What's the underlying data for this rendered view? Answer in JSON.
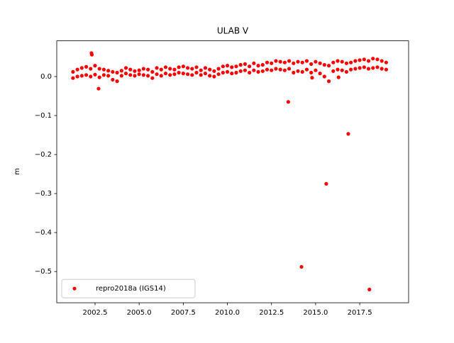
{
  "chart_data": {
    "type": "scatter",
    "title": "ULAB V",
    "ylabel": "m",
    "series": [
      {
        "name": "repro2018a (IGS14)",
        "color": "#ff0000",
        "x": [
          2001.25,
          2001.25,
          2001.5,
          2001.5,
          2001.75,
          2001.75,
          2002.0,
          2002.0,
          2002.25,
          2002.25,
          2002.5,
          2002.5,
          2002.75,
          2002.75,
          2003.0,
          2003.0,
          2003.25,
          2003.25,
          2003.5,
          2003.5,
          2003.75,
          2003.75,
          2004.0,
          2004.0,
          2004.25,
          2004.25,
          2004.5,
          2004.5,
          2004.75,
          2004.75,
          2005.0,
          2005.0,
          2005.25,
          2005.25,
          2005.5,
          2005.5,
          2005.75,
          2005.75,
          2006.0,
          2006.0,
          2006.25,
          2006.25,
          2006.5,
          2006.5,
          2006.75,
          2006.75,
          2007.0,
          2007.0,
          2007.25,
          2007.25,
          2007.5,
          2007.5,
          2007.75,
          2007.75,
          2008.0,
          2008.0,
          2008.25,
          2008.25,
          2008.5,
          2008.5,
          2008.75,
          2008.75,
          2009.0,
          2009.0,
          2009.25,
          2009.25,
          2009.5,
          2009.5,
          2009.75,
          2009.75,
          2010.0,
          2010.0,
          2010.25,
          2010.25,
          2010.5,
          2010.5,
          2010.75,
          2010.75,
          2011.0,
          2011.0,
          2011.25,
          2011.25,
          2011.5,
          2011.5,
          2011.75,
          2011.75,
          2012.0,
          2012.0,
          2012.25,
          2012.25,
          2012.5,
          2012.5,
          2012.75,
          2012.75,
          2013.0,
          2013.0,
          2013.25,
          2013.25,
          2013.5,
          2013.5,
          2013.75,
          2013.75,
          2014.0,
          2014.0,
          2014.25,
          2014.25,
          2014.5,
          2014.5,
          2014.75,
          2014.75,
          2015.0,
          2015.0,
          2015.25,
          2015.25,
          2015.5,
          2015.5,
          2015.75,
          2015.75,
          2016.0,
          2016.0,
          2016.25,
          2016.25,
          2016.5,
          2016.5,
          2016.75,
          2016.75,
          2017.0,
          2017.0,
          2017.25,
          2017.25,
          2017.5,
          2017.5,
          2017.75,
          2017.75,
          2018.0,
          2018.0,
          2018.25,
          2018.25,
          2018.5,
          2018.5,
          2018.75,
          2018.75,
          2019.0,
          2019.0,
          2002.3,
          2002.32,
          2002.7,
          2013.45,
          2014.2,
          2015.6,
          2016.85,
          2018.05,
          2014.8,
          2016.3
        ],
        "values": [
          0.012,
          -0.004,
          0.018,
          0.0,
          0.022,
          0.002,
          0.025,
          0.004,
          0.02,
          0.0,
          0.028,
          0.005,
          0.02,
          -0.002,
          0.018,
          0.004,
          0.015,
          0.002,
          0.012,
          -0.008,
          0.01,
          -0.012,
          0.015,
          0.002,
          0.022,
          0.008,
          0.018,
          0.004,
          0.014,
          0.002,
          0.016,
          0.006,
          0.02,
          0.004,
          0.018,
          0.002,
          0.012,
          -0.004,
          0.022,
          0.006,
          0.018,
          0.002,
          0.024,
          0.008,
          0.02,
          0.004,
          0.018,
          0.006,
          0.024,
          0.01,
          0.026,
          0.008,
          0.022,
          0.006,
          0.02,
          0.004,
          0.024,
          0.01,
          0.016,
          0.004,
          0.022,
          0.008,
          0.018,
          0.002,
          0.014,
          0.0,
          0.02,
          0.006,
          0.026,
          0.01,
          0.028,
          0.012,
          0.024,
          0.008,
          0.026,
          0.01,
          0.03,
          0.014,
          0.032,
          0.016,
          0.026,
          0.01,
          0.034,
          0.016,
          0.028,
          0.012,
          0.03,
          0.014,
          0.036,
          0.018,
          0.034,
          0.016,
          0.04,
          0.02,
          0.038,
          0.018,
          0.036,
          0.016,
          0.04,
          0.02,
          0.034,
          0.01,
          0.038,
          0.014,
          0.036,
          0.012,
          0.04,
          0.018,
          0.032,
          0.01,
          0.038,
          0.016,
          0.034,
          0.008,
          0.03,
          0.0,
          0.028,
          -0.012,
          0.036,
          0.014,
          0.04,
          0.018,
          0.038,
          0.016,
          0.034,
          0.012,
          0.036,
          0.018,
          0.04,
          0.02,
          0.042,
          0.022,
          0.044,
          0.024,
          0.04,
          0.02,
          0.046,
          0.022,
          0.044,
          0.024,
          0.04,
          0.02,
          0.036,
          0.018,
          0.06,
          0.056,
          -0.031,
          -0.065,
          -0.488,
          -0.275,
          -0.147,
          -0.546,
          -0.003,
          -0.002
        ]
      }
    ],
    "xlim": [
      2000.33,
      2020.27
    ],
    "xticks": [
      2002.5,
      {
        "value": 2005,
        "label": "2005.0"
      },
      2007.5,
      {
        "value": 2010,
        "label": "2010.0"
      },
      2012.5,
      {
        "value": 2015,
        "label": "2015.0"
      },
      2017.5
    ],
    "ylim": [
      -0.58,
      0.0916
    ],
    "yticks": [
      {
        "value": -0.5,
        "label": "−0.5"
      },
      {
        "value": -0.4,
        "label": "−0.4"
      },
      {
        "value": -0.3,
        "label": "−0.3"
      },
      {
        "value": -0.2,
        "label": "−0.2"
      },
      {
        "value": -0.1,
        "label": "−0.1"
      },
      {
        "value": 0,
        "label": "0.0"
      }
    ],
    "legend": "lower left"
  }
}
